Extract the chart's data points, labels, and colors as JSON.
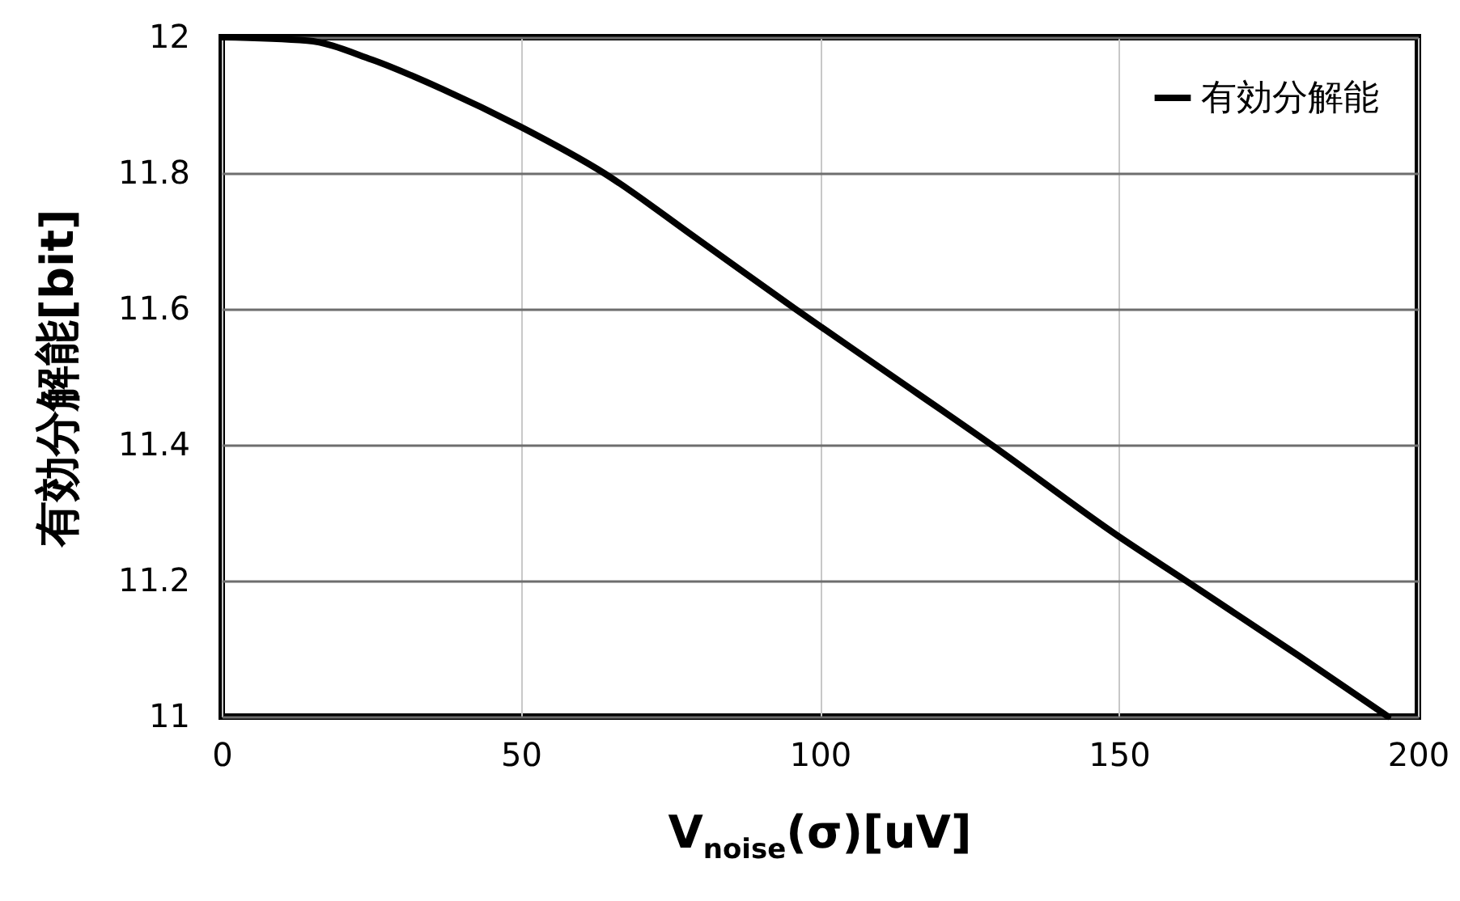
{
  "chart_data": {
    "type": "line",
    "xlabel": "V$_{noise}$(σ)[uV]",
    "ylabel": "有効分解能[bit]",
    "x": [
      0,
      14.3,
      25.1,
      36.8,
      50,
      63.9,
      79.2,
      95.9,
      110,
      128.7,
      150,
      161.2,
      180,
      195
    ],
    "series": [
      {
        "name": "有効分解能",
        "color": "#000000",
        "values": [
          12,
          11.995,
          11.967,
          11.924,
          11.868,
          11.8,
          11.705,
          11.6,
          11.514,
          11.4,
          11.265,
          11.2,
          11.09,
          11.0
        ]
      }
    ],
    "xlim": [
      0,
      200
    ],
    "xticks": [
      0,
      50,
      100,
      150,
      200
    ],
    "ylim": [
      11,
      12
    ],
    "yticks": [
      11,
      11.2,
      11.4,
      11.6,
      11.8,
      12
    ],
    "grid": true,
    "legend": "top right",
    "marker": "none",
    "line_style": "solid"
  }
}
